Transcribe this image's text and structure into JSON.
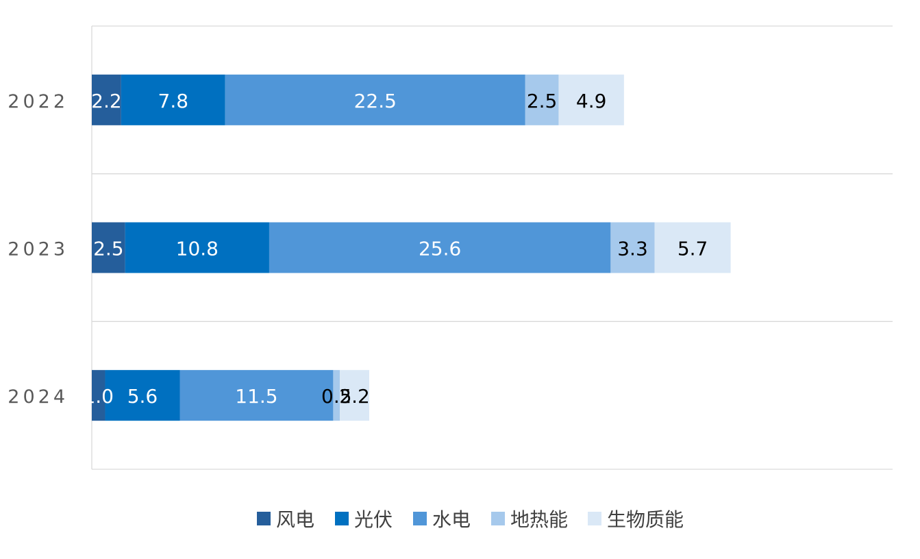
{
  "chart_data": {
    "type": "bar",
    "orientation": "horizontal",
    "stacked": true,
    "categories": [
      "2022",
      "2023",
      "2024"
    ],
    "series": [
      {
        "name": "风电",
        "values": [
          2.2,
          2.5,
          1.0
        ],
        "color": "#255E9B",
        "label_color": "#ffffff"
      },
      {
        "name": "光伏",
        "values": [
          7.8,
          10.8,
          5.6
        ],
        "color": "#0070C0",
        "label_color": "#ffffff"
      },
      {
        "name": "水电",
        "values": [
          22.5,
          25.6,
          11.5
        ],
        "color": "#5096D8",
        "label_color": "#ffffff"
      },
      {
        "name": "地热能",
        "values": [
          2.5,
          3.3,
          0.5
        ],
        "color": "#A6C9EC",
        "label_color": "#000000"
      },
      {
        "name": "生物质能",
        "values": [
          4.9,
          5.7,
          2.2
        ],
        "color": "#DAE8F6",
        "label_color": "#000000"
      }
    ],
    "xlim": [
      0,
      60
    ],
    "x_axis_labels_visible": false,
    "grid": "horizontal category separators",
    "legend": "bottom",
    "title": "",
    "xlabel": "",
    "ylabel": ""
  }
}
